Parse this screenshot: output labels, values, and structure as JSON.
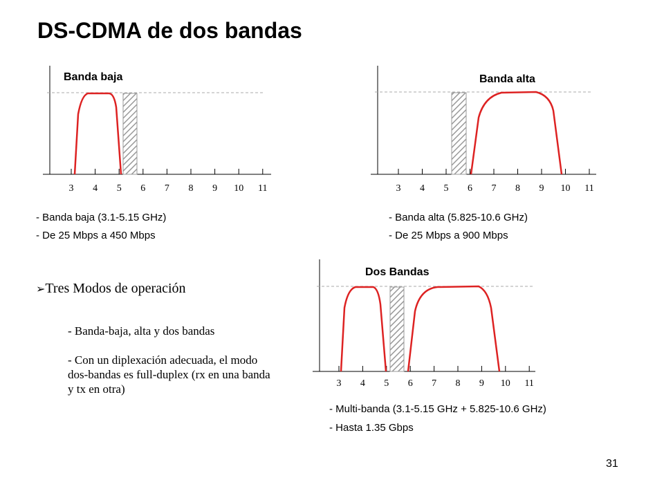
{
  "slide": {
    "title": "DS-CDMA de dos bandas",
    "page_number": "31"
  },
  "colors": {
    "band_curve": "#dd2222",
    "hatch": "#999999",
    "axis": "#000000",
    "reference_line": "#aaaaaa"
  },
  "ticks": [
    "3",
    "4",
    "5",
    "6",
    "7",
    "8",
    "9",
    "10",
    "11"
  ],
  "diagrams": {
    "low": {
      "label": "Banda baja",
      "notes": [
        "- Banda baja (3.1-5.15 GHz)",
        "- De 25 Mbps a 450 Mbps"
      ]
    },
    "high": {
      "label": "Banda alta",
      "notes": [
        "- Banda alta (5.825-10.6 GHz)",
        "- De 25 Mbps a 900 Mbps"
      ]
    },
    "dual": {
      "label": "Dos Bandas",
      "notes": [
        "- Multi-banda (3.1-5.15 GHz + 5.825-10.6 GHz)",
        "- Hasta 1.35 Gbps"
      ]
    }
  },
  "modes": {
    "heading": "Tres Modos de operación",
    "bullet_symbol": "➢",
    "items": [
      "- Banda-baja, alta y dos bandas",
      "- Con un diplexación adecuada, el modo dos-bandas es full-duplex (rx en una banda y tx en otra)"
    ]
  }
}
